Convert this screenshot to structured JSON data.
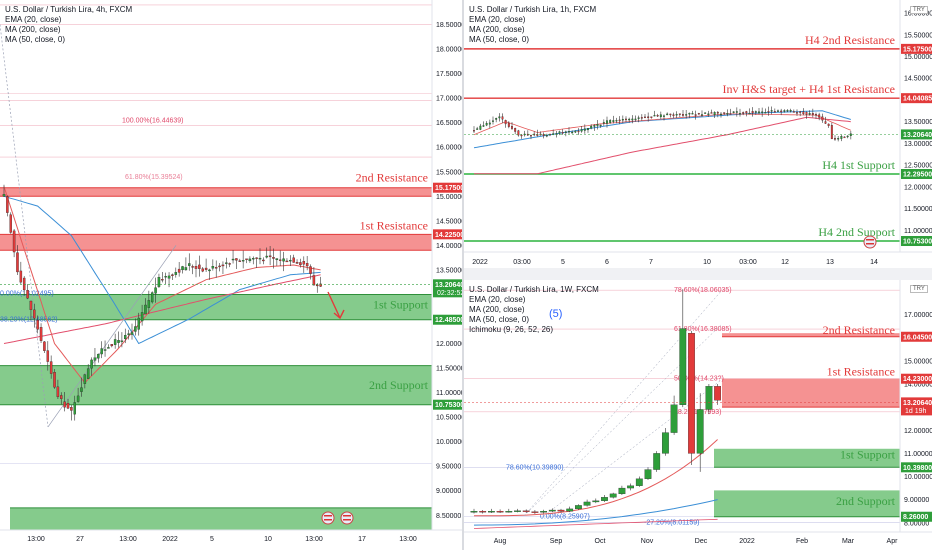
{
  "panels": {
    "left": {
      "legend": {
        "title": "U.S. Dollar / Turkish Lira, 4h, FXCM",
        "l1": "EMA (20, close)",
        "l2": "MA (200, close)",
        "l3": "MA (50, close, 0)"
      },
      "annotations": {
        "r2": "2nd Resistance",
        "r1": "1st Resistance",
        "s1": "1st Support",
        "s2": "2nd Support"
      },
      "fib_labels": {
        "f100": "100.00%(16.44639)",
        "f618": "61.80%(15.39524)",
        "f_low1": "0.00%(13.02495)",
        "f_low2": "38.20%(12.48562)"
      },
      "price_tags": {
        "r2": "15.17500",
        "r1": "14.22500",
        "cur": "13.20640",
        "cur_time": "02:32:52",
        "s1": "12.48500",
        "s2": "10.75300"
      },
      "x_ticks": [
        "13:00",
        "27",
        "13:00",
        "2022",
        "5",
        "10",
        "13:00",
        "17",
        "13:00"
      ]
    },
    "topright": {
      "legend": {
        "title": "U.S. Dollar / Turkish Lira, 1h, FXCM",
        "l1": "EMA (20, close)",
        "l2": "MA (200, close)",
        "l3": "MA (50, close, 0)"
      },
      "annotations": {
        "r2": "H4 2nd Resistance",
        "r1": "Inv H&S target + H4 1st Resistance",
        "s1": "H4 1st Support",
        "s2": "H4 2nd Support"
      },
      "price_tags": {
        "r2": "15.17500",
        "r1": "14.04085",
        "cur": "13.20640",
        "s1": "12.29500",
        "s2": "10.75300"
      },
      "currency_btn": "TRY",
      "x_ticks": [
        "2022",
        "03:00",
        "5",
        "6",
        "7",
        "10",
        "03:00",
        "12",
        "13",
        "14"
      ]
    },
    "bottomright": {
      "legend": {
        "title": "U.S. Dollar / Turkish Lira, 1W, FXCM",
        "l1": "EMA (20, close)",
        "l2": "MA (200, close)",
        "l3": "MA (50, close, 0)",
        "l4": "Ichimoku (9, 26, 52, 26)"
      },
      "wave_label": "(5)",
      "annotations": {
        "r2": "2nd Resistance",
        "r1": "1st Resistance",
        "s1": "1st Support",
        "s2": "2nd Support"
      },
      "fib_labels": {
        "f786": "78.60%(18.06035)",
        "f618": "61.80%(16.38085)",
        "f500": "50.00%(14.23?)",
        "f382": "38.2?(12.7993)",
        "fb786": "78.60%(10.39890)",
        "fb0": "0.00%(8.25907)",
        "fb272": "-27.20%(8.01159)"
      },
      "price_tags": {
        "r2": "16.04500",
        "r1": "14.23000",
        "cur": "13.20640",
        "cur_time": "1d 19h",
        "s1": "10.39800",
        "s2": "8.26000"
      },
      "currency_btn": "TRY",
      "x_ticks": [
        "Aug",
        "Sep",
        "Oct",
        "Nov",
        "Dec",
        "2022",
        "Feb",
        "Mar",
        "Apr"
      ]
    }
  },
  "chart_data": [
    {
      "type": "candlestick",
      "title": "U.S. Dollar / Turkish Lira, 4h, FXCM",
      "ylim": [
        8.2,
        19.0
      ],
      "y_ticks": [
        18.5,
        18.0,
        17.5,
        17.0,
        16.5,
        16.0,
        15.5,
        15.0,
        14.5,
        14.0,
        13.5,
        13.0,
        12.5,
        12.0,
        11.5,
        11.0,
        10.5,
        10.0,
        9.5,
        9.0,
        8.5
      ],
      "zones": [
        {
          "name": "2nd Resistance",
          "from": 15.0,
          "to": 15.175,
          "color": "#f26d6d"
        },
        {
          "name": "1st Resistance",
          "from": 13.9,
          "to": 14.225,
          "color": "#f26d6d"
        },
        {
          "name": "1st Support",
          "from": 12.485,
          "to": 13.0,
          "color": "#5cba65"
        },
        {
          "name": "2nd Support",
          "from": 10.753,
          "to": 11.55,
          "color": "#5cba65"
        },
        {
          "name": "",
          "from": 8.2,
          "to": 8.65,
          "color": "#5cba65"
        }
      ],
      "current": 13.2064
    },
    {
      "type": "candlestick",
      "title": "U.S. Dollar / Turkish Lira, 1h, FXCM",
      "ylim": [
        10.5,
        16.3
      ],
      "y_ticks": [
        16.0,
        15.5,
        15.0,
        14.5,
        14.0,
        13.5,
        13.0,
        12.5,
        12.0,
        11.5,
        11.0
      ],
      "levels": [
        {
          "name": "H4 2nd Resistance",
          "value": 15.175,
          "color": "#e23a3a"
        },
        {
          "name": "Inv H&S target + H4 1st Resistance",
          "value": 14.04085,
          "color": "#e23a3a"
        },
        {
          "name": "H4 1st Support",
          "value": 12.295,
          "color": "#2bb33f"
        },
        {
          "name": "H4 2nd Support",
          "value": 10.753,
          "color": "#2bb33f"
        }
      ],
      "current": 13.2064
    },
    {
      "type": "candlestick",
      "title": "U.S. Dollar / Turkish Lira, 1W, FXCM",
      "ylim": [
        7.6,
        18.5
      ],
      "y_ticks": [
        17.0,
        16.0,
        15.0,
        14.0,
        13.0,
        12.0,
        11.0,
        10.0,
        9.0,
        8.0
      ],
      "zones": [
        {
          "name": "2nd Resistance",
          "from": 16.045,
          "to": 16.2,
          "color": "#f26d6d"
        },
        {
          "name": "1st Resistance",
          "from": 13.0,
          "to": 14.23,
          "color": "#f26d6d"
        },
        {
          "name": "1st Support",
          "from": 10.398,
          "to": 11.2,
          "color": "#5cba65"
        },
        {
          "name": "2nd Support",
          "from": 8.26,
          "to": 9.4,
          "color": "#5cba65"
        }
      ],
      "current": 13.2064
    }
  ]
}
